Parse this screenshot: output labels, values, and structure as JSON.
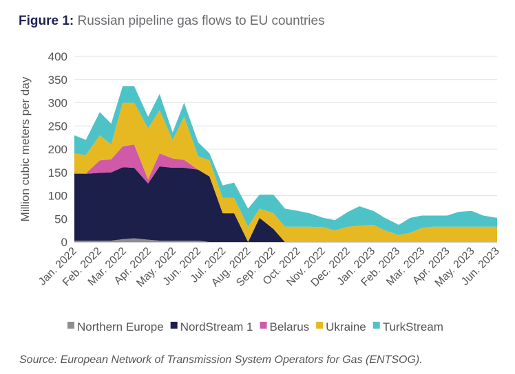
{
  "title": {
    "label": "Figure 1:",
    "text": "Russian pipeline gas flows to EU countries"
  },
  "source": "Source: European Network of Transmission System Operators for Gas (ENTSOG).",
  "chart_data": {
    "type": "area",
    "stacked": true,
    "title": "Russian pipeline gas flows to EU countries",
    "ylabel": "Million cubic meters per day",
    "xlabel": "",
    "ylim": [
      0,
      400
    ],
    "yticks": [
      0,
      50,
      100,
      150,
      200,
      250,
      300,
      350,
      400
    ],
    "grid": true,
    "legend_position": "bottom",
    "xtick_labels": [
      "Jan. 2022",
      "Feb. 2022",
      "Mar. 2022",
      "Apr. 2022",
      "May. 2022",
      "Jun. 2022",
      "Jul. 2022",
      "Aug. 2022",
      "Sep. 2022",
      "Oct. 2022",
      "Nov. 2022",
      "Dec. 2022",
      "Jan. 2023",
      "Feb. 2023",
      "Mar. 2023",
      "Apr. 2023",
      "May. 2023",
      "Jun. 2023"
    ],
    "x": [
      "2022-01-01",
      "2022-01-15",
      "2022-02-01",
      "2022-02-15",
      "2022-03-01",
      "2022-03-15",
      "2022-04-01",
      "2022-04-15",
      "2022-05-01",
      "2022-05-15",
      "2022-06-01",
      "2022-06-15",
      "2022-07-01",
      "2022-07-15",
      "2022-08-01",
      "2022-08-15",
      "2022-09-01",
      "2022-09-15",
      "2022-10-01",
      "2022-10-15",
      "2022-11-01",
      "2022-11-15",
      "2022-12-01",
      "2022-12-15",
      "2023-01-01",
      "2023-01-15",
      "2023-02-01",
      "2023-02-15",
      "2023-03-01",
      "2023-03-15",
      "2023-04-01",
      "2023-04-15",
      "2023-05-01",
      "2023-05-15",
      "2023-06-01"
    ],
    "series": [
      {
        "name": "Northern Europe",
        "color": "#8e8e8e",
        "values": [
          3,
          3,
          3,
          3,
          6,
          8,
          5,
          3,
          3,
          3,
          3,
          0,
          0,
          0,
          0,
          0,
          0,
          0,
          0,
          0,
          0,
          0,
          0,
          0,
          0,
          0,
          0,
          0,
          0,
          0,
          0,
          0,
          0,
          0,
          0
        ]
      },
      {
        "name": "NordStream 1",
        "color": "#1c1f4a",
        "values": [
          144,
          144,
          146,
          147,
          155,
          152,
          121,
          160,
          157,
          157,
          153,
          141,
          62,
          62,
          0,
          52,
          28,
          0,
          0,
          0,
          0,
          0,
          0,
          0,
          0,
          0,
          0,
          0,
          0,
          0,
          0,
          0,
          0,
          0,
          0
        ]
      },
      {
        "name": "Belarus",
        "color": "#d05aa8",
        "values": [
          2,
          1,
          27,
          28,
          45,
          50,
          9,
          28,
          20,
          17,
          0,
          0,
          0,
          0,
          0,
          0,
          0,
          0,
          0,
          0,
          0,
          0,
          0,
          0,
          0,
          0,
          0,
          0,
          0,
          0,
          0,
          0,
          0,
          0,
          0
        ]
      },
      {
        "name": "Ukraine",
        "color": "#e6b923",
        "values": [
          42,
          39,
          54,
          32,
          94,
          90,
          110,
          93,
          40,
          93,
          29,
          35,
          33,
          33,
          33,
          20,
          34,
          33,
          33,
          33,
          32,
          25,
          33,
          35,
          37,
          25,
          15,
          20,
          30,
          33,
          33,
          33,
          33,
          33,
          33
        ]
      },
      {
        "name": "TurkStream",
        "color": "#4dc3c8",
        "values": [
          39,
          33,
          50,
          45,
          36,
          36,
          25,
          35,
          16,
          30,
          30,
          15,
          27,
          33,
          39,
          30,
          40,
          39,
          34,
          29,
          20,
          22,
          32,
          42,
          30,
          27,
          22,
          32,
          27,
          24,
          24,
          32,
          34,
          24,
          19
        ]
      }
    ]
  }
}
